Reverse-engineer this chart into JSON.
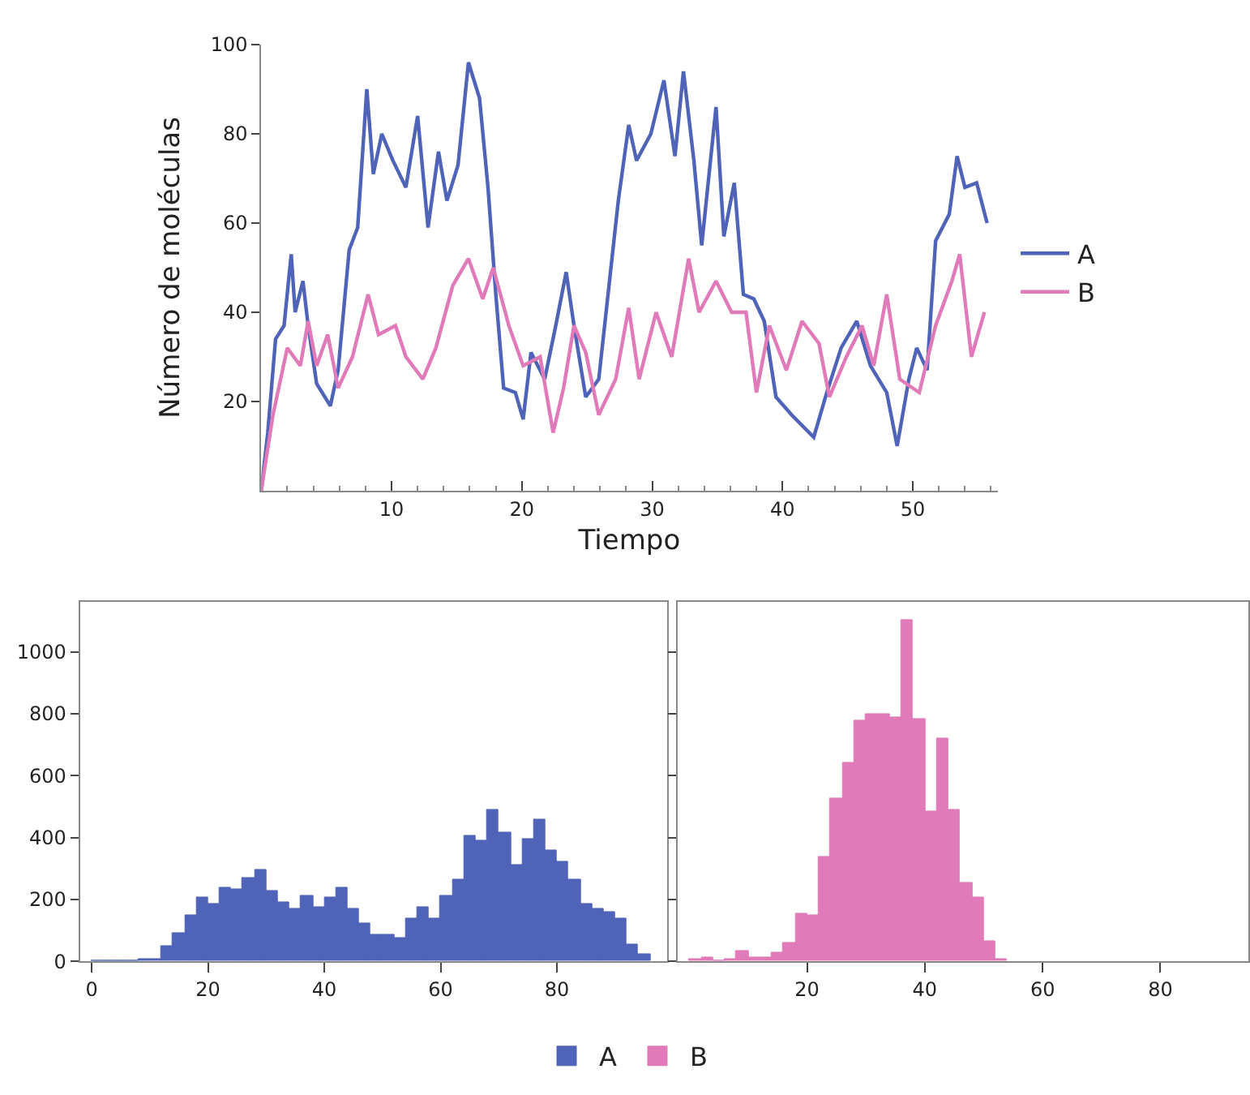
{
  "chart_data": [
    {
      "type": "line",
      "xlabel": "Tiempo",
      "ylabel": "Número de moléculas",
      "xlim": [
        0,
        56.5
      ],
      "ylim": [
        0,
        100
      ],
      "xticks": [
        10,
        20,
        30,
        40,
        50
      ],
      "yticks": [
        20,
        40,
        60,
        80,
        100
      ],
      "legend": "right",
      "marker": "none",
      "line_style": "solid",
      "series": [
        {
          "name": "A",
          "color": "#4f63b8",
          "x": [
            0,
            0.5,
            1.1,
            1.75,
            2.3,
            2.6,
            3.2,
            3.6,
            4.25,
            5.3,
            5.9,
            6.75,
            7.4,
            8.1,
            8.6,
            9.25,
            10.1,
            11.1,
            12,
            12.8,
            13.6,
            14.25,
            15.1,
            15.9,
            16.75,
            17.4,
            18,
            18.6,
            19.5,
            20.1,
            20.7,
            21.75,
            22.6,
            23.4,
            24,
            24.9,
            25.9,
            27.4,
            28.2,
            28.8,
            29.9,
            30.9,
            31.75,
            32.4,
            33.2,
            33.8,
            34.9,
            35.5,
            36.3,
            37,
            37.8,
            38.6,
            39.5,
            40.7,
            42.4,
            43.4,
            44.5,
            45.7,
            46.75,
            48,
            48.8,
            49.7,
            50.3,
            51.1,
            51.75,
            52.8,
            53.4,
            54,
            54.9,
            55.7
          ],
          "values": [
            0,
            13,
            34,
            37,
            53,
            40,
            47,
            37,
            24,
            19,
            27,
            54,
            59,
            90,
            71,
            80,
            74,
            68,
            84,
            59,
            76,
            65,
            73,
            96,
            88,
            68,
            44,
            23,
            22,
            16,
            31,
            25,
            37,
            49,
            37,
            21,
            25,
            65,
            82,
            74,
            80,
            92,
            75,
            94,
            74,
            55,
            86,
            57,
            69,
            44,
            43,
            38,
            21,
            17,
            12,
            22,
            32,
            38,
            28,
            22,
            10,
            25,
            32,
            27,
            56,
            62,
            75,
            68,
            69,
            60
          ]
        },
        {
          "name": "B",
          "color": "#e07ab9",
          "x": [
            0,
            0.9,
            2,
            3,
            3.6,
            4.25,
            5.1,
            5.9,
            7,
            8.2,
            9,
            10.3,
            11.1,
            12.4,
            13.4,
            14.7,
            15.9,
            17,
            17.8,
            19,
            20.1,
            21.4,
            22.4,
            23.2,
            24,
            24.9,
            25.9,
            27.2,
            28.2,
            29,
            30.3,
            31.5,
            32.8,
            33.6,
            34.9,
            36.1,
            37.2,
            38,
            39,
            40.3,
            41.5,
            42.8,
            43.6,
            44.9,
            46.1,
            47,
            48,
            49,
            50.5,
            51.75,
            53,
            53.6,
            54.5,
            55.5
          ],
          "values": [
            0,
            17,
            32,
            28,
            38,
            28,
            35,
            23,
            30,
            44,
            35,
            37,
            30,
            25,
            32,
            46,
            52,
            43,
            50,
            37,
            28,
            30,
            13,
            23,
            37,
            31,
            17,
            25,
            41,
            25,
            40,
            30,
            52,
            40,
            47,
            40,
            40,
            22,
            37,
            27,
            38,
            33,
            21,
            30,
            37,
            28,
            44,
            25,
            22,
            37,
            47,
            53,
            30,
            40
          ]
        }
      ]
    },
    {
      "type": "histogram",
      "xlim": [
        -2,
        99
      ],
      "ylim": [
        0,
        1160
      ],
      "xticks": [
        0,
        20,
        40,
        60,
        80
      ],
      "yticks": [
        0,
        200,
        400,
        600,
        800,
        1000
      ],
      "legend": "bottom",
      "bins": [
        0,
        2,
        4,
        6,
        8,
        10,
        12,
        14,
        16,
        18,
        20,
        22,
        24,
        26,
        28,
        30,
        32,
        34,
        36,
        38,
        40,
        42,
        44,
        46,
        48,
        50,
        52,
        54,
        56,
        58,
        60,
        62,
        64,
        66,
        68,
        70,
        72,
        74,
        76,
        78,
        80,
        82,
        84,
        86,
        88,
        90,
        92,
        94,
        96
      ],
      "series": [
        {
          "name": "A",
          "color": "#4f63b8",
          "values": [
            1,
            2,
            2,
            2,
            5,
            7,
            51,
            89,
            147,
            207,
            184,
            237,
            235,
            268,
            295,
            230,
            189,
            172,
            212,
            174,
            207,
            237,
            168,
            121,
            84,
            88,
            74,
            140,
            174,
            140,
            211,
            263,
            407,
            391,
            491,
            418,
            311,
            395,
            458,
            358,
            321,
            265,
            188,
            170,
            160,
            137,
            56,
            23
          ]
        }
      ]
    },
    {
      "type": "histogram",
      "xlim": [
        -2,
        95
      ],
      "ylim": [
        0,
        1160
      ],
      "xticks": [
        20,
        40,
        60,
        80
      ],
      "yticks": [
        0,
        200,
        400,
        600,
        800,
        1000
      ],
      "tick_labels": "x",
      "legend": "bottom",
      "bins": [
        0,
        2,
        4,
        6,
        8,
        10,
        12,
        14,
        16,
        18,
        20,
        22,
        24,
        26,
        28,
        30,
        32,
        34,
        36,
        38,
        40,
        42,
        44,
        46,
        48,
        50,
        52,
        54
      ],
      "series": [
        {
          "name": "B",
          "color": "#e07ab9",
          "values": [
            7,
            14,
            4,
            7,
            32,
            12,
            12,
            26,
            60,
            154,
            147,
            337,
            528,
            644,
            775,
            796,
            798,
            786,
            1104,
            781,
            486,
            718,
            491,
            254,
            207,
            63,
            5
          ]
        }
      ]
    }
  ]
}
